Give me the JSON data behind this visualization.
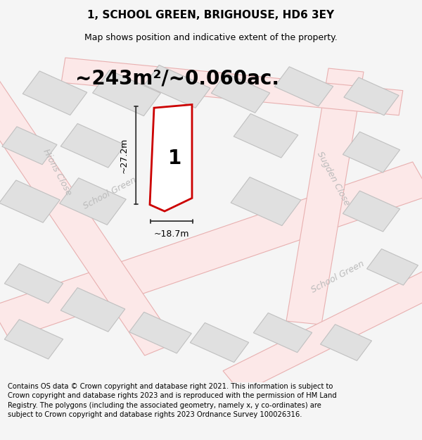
{
  "title": "1, SCHOOL GREEN, BRIGHOUSE, HD6 3EY",
  "subtitle": "Map shows position and indicative extent of the property.",
  "area_text": "~243m²/~0.060ac.",
  "dim_width": "~18.7m",
  "dim_height": "~27.2m",
  "label": "1",
  "footer": "Contains OS data © Crown copyright and database right 2021. This information is subject to Crown copyright and database rights 2023 and is reproduced with the permission of HM Land Registry. The polygons (including the associated geometry, namely x, y co-ordinates) are subject to Crown copyright and database rights 2023 Ordnance Survey 100026316.",
  "bg_color": "#f5f5f5",
  "map_bg": "#ffffff",
  "road_fill": "#fce8e8",
  "road_line": "#e8b0b0",
  "building_fill": "#e0e0e0",
  "building_line": "#c0c0c0",
  "plot_fill": "#ffffff",
  "plot_line": "#cc0000",
  "street_color": "#bbbbbb",
  "dim_color": "#333333",
  "title_fontsize": 11,
  "subtitle_fontsize": 9,
  "area_fontsize": 20,
  "label_fontsize": 20,
  "footer_fontsize": 7.2,
  "street_fontsize": 9
}
